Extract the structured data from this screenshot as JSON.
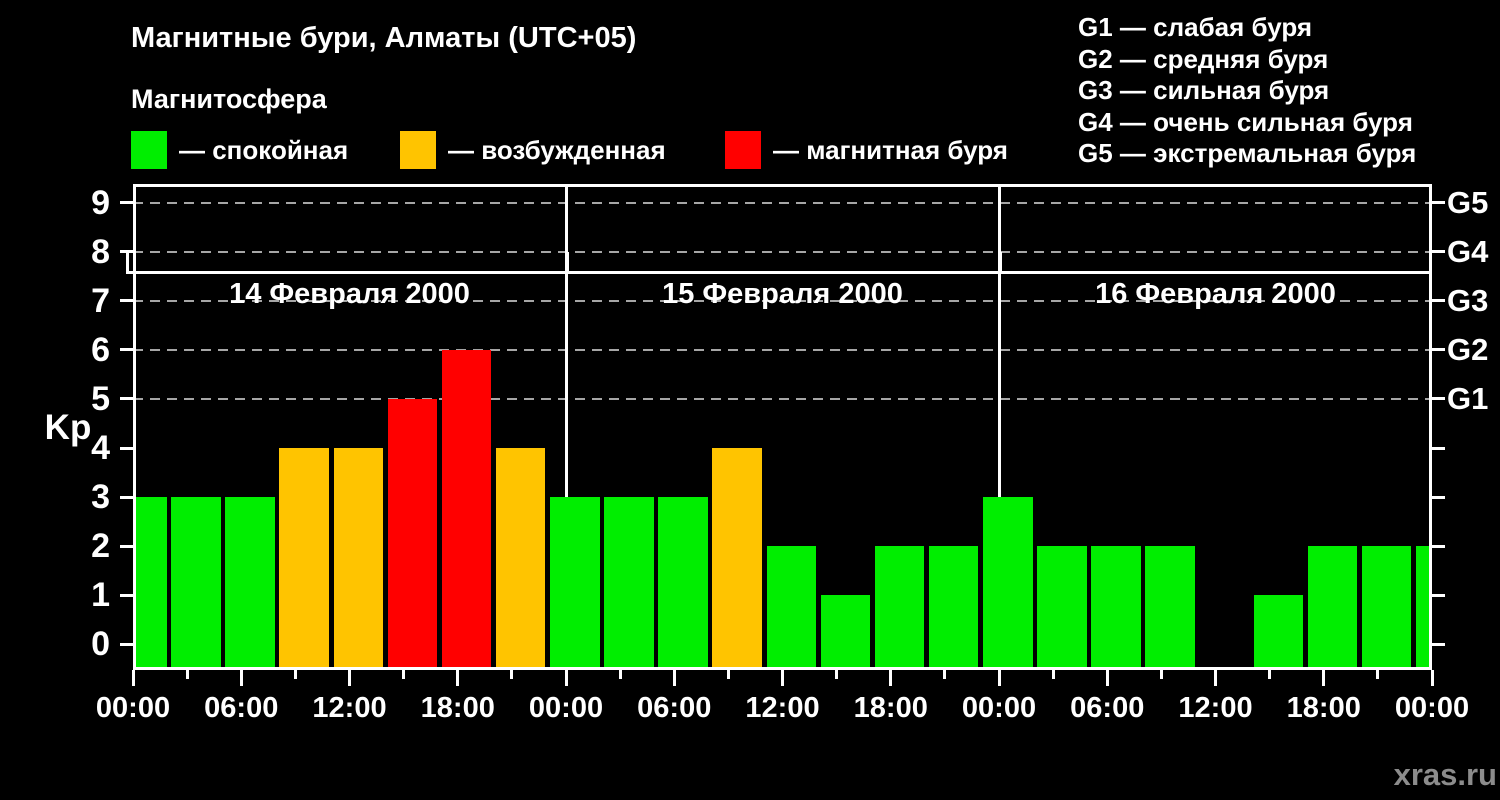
{
  "header": {
    "title": "Магнитные бури, Алматы (UTC+05)",
    "subtitle": "Магнитосфера"
  },
  "legend": {
    "items": [
      {
        "label": "— спокойная",
        "state": "quiet"
      },
      {
        "label": "— возбужденная",
        "state": "excited"
      },
      {
        "label": "— магнитная буря",
        "state": "storm"
      }
    ]
  },
  "storm_scale": {
    "lines": [
      "G1 — слабая буря",
      "G2 — средняя буря",
      "G3 — сильная буря",
      "G4 — очень сильная буря",
      "G5 — экстремальная буря"
    ]
  },
  "footer": {
    "watermark": "xras.ru"
  },
  "chart_data": {
    "type": "bar",
    "title": "Магнитные бури, Алматы (UTC+05)",
    "ylabel": "Kp",
    "ylim": [
      -0.52,
      9.38
    ],
    "yticks": [
      0,
      1,
      2,
      3,
      4,
      5,
      6,
      7,
      8,
      9
    ],
    "grid_levels": [
      5,
      6,
      7,
      8,
      9
    ],
    "right_axis": [
      {
        "level": 9,
        "label": "G5"
      },
      {
        "level": 8,
        "label": "G4"
      },
      {
        "level": 7,
        "label": "G3"
      },
      {
        "level": 6,
        "label": "G2"
      },
      {
        "level": 5,
        "label": "G1"
      }
    ],
    "bar_interval_hours": 3,
    "time_tick_labels": [
      "00:00",
      "06:00",
      "12:00",
      "18:00",
      "00:00",
      "06:00",
      "12:00",
      "18:00",
      "00:00",
      "06:00",
      "12:00",
      "18:00",
      "00:00"
    ],
    "days": [
      {
        "date_label": "14 Февраля 2000",
        "kp_values": [
          3,
          3,
          3,
          4,
          4,
          5,
          6,
          4
        ]
      },
      {
        "date_label": "15 Февраля 2000",
        "kp_values": [
          3,
          3,
          3,
          4,
          2,
          1,
          2,
          2
        ]
      },
      {
        "date_label": "16 Февраля 2000",
        "kp_values": [
          3,
          2,
          2,
          2,
          null,
          1,
          2,
          2
        ]
      }
    ],
    "next_day_partial_bar": {
      "time": "17 Февраля 2000 00:00",
      "kp": 2
    },
    "color_rule": {
      "quiet": "Kp ≤ 3",
      "excited": "Kp = 4",
      "storm": "Kp ≥ 5"
    },
    "colors": {
      "quiet": "#00EE00",
      "excited": "#FFC400",
      "storm": "#FF0000",
      "grid": "#A6A6A6",
      "frame": "#FFFFFF",
      "background": "#000000",
      "text": "#FFFFFF",
      "watermark": "#8C8C8C"
    }
  }
}
